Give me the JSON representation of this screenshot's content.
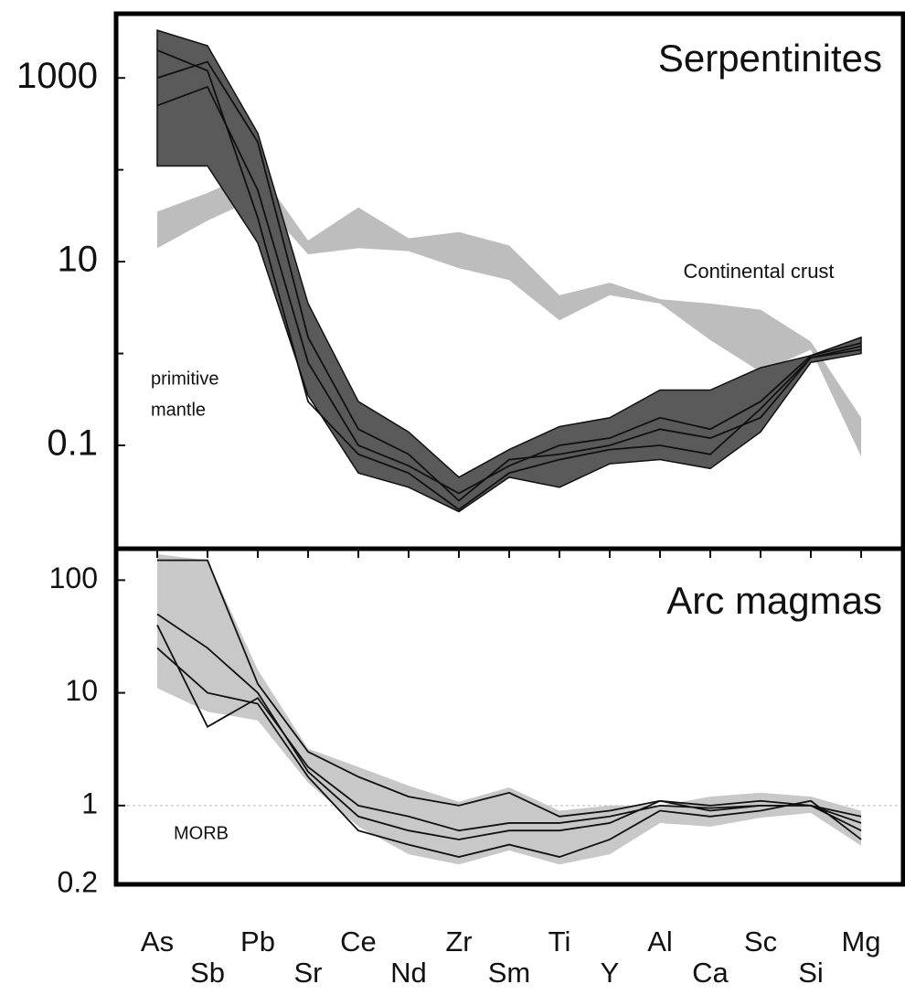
{
  "chart_data": [
    {
      "type": "line",
      "title": "Serpentinites",
      "log_y": true,
      "ylim": [
        0.0075,
        5000
      ],
      "yticks": [
        0.1,
        10,
        1000
      ],
      "minor_yticks": [
        1,
        100
      ],
      "annotations": [
        "Continental crust",
        "primitive",
        "mantle"
      ],
      "bands": [
        {
          "color": "#bdbdbd",
          "high": [
            35,
            56,
            100,
            17,
            39,
            18,
            21,
            15,
            4.3,
            5.9,
            3.9,
            3.5,
            3.0,
            1.35,
            0.2
          ],
          "low": [
            14,
            28,
            50,
            12,
            14,
            13,
            8.5,
            6.3,
            2.3,
            4.3,
            3.5,
            1.4,
            0.63,
            1.1,
            0.076
          ]
        },
        {
          "color": "#5a5a5a",
          "high": [
            3300,
            2240,
            250,
            3.5,
            0.3,
            0.14,
            0.045,
            0.09,
            0.16,
            0.2,
            0.4,
            0.4,
            0.7,
            0.95,
            1.5
          ],
          "low": [
            110,
            110,
            16,
            0.35,
            0.05,
            0.035,
            0.019,
            0.045,
            0.035,
            0.063,
            0.07,
            0.056,
            0.14,
            0.8,
            1.0
          ]
        }
      ],
      "series": [
        {
          "color": "#111111",
          "values": [
            1000,
            1500,
            200,
            1.5,
            0.15,
            0.08,
            0.025,
            0.07,
            0.08,
            0.1,
            0.15,
            0.12,
            0.2,
            0.9,
            1.2
          ]
        },
        {
          "color": "#111111",
          "values": [
            500,
            800,
            60,
            0.8,
            0.1,
            0.06,
            0.03,
            0.06,
            0.1,
            0.12,
            0.2,
            0.15,
            0.3,
            0.95,
            1.3
          ]
        },
        {
          "color": "#111111",
          "values": [
            2000,
            1200,
            30,
            0.3,
            0.08,
            0.05,
            0.02,
            0.05,
            0.07,
            0.09,
            0.1,
            0.08,
            0.25,
            0.9,
            1.1
          ]
        }
      ]
    },
    {
      "type": "line",
      "title": "Arc magmas",
      "log_y": true,
      "categories": [
        "As",
        "Sb",
        "Pb",
        "Sr",
        "Ce",
        "Nd",
        "Zr",
        "Sm",
        "Ti",
        "Y",
        "Al",
        "Ca",
        "Sc",
        "Si",
        "Mg"
      ],
      "ylim": [
        0.2,
        190
      ],
      "yticks": [
        0.2,
        1,
        10,
        100
      ],
      "reference_line": 1,
      "annotations": [
        "MORB"
      ],
      "bands": [
        {
          "color": "#c8c8c8",
          "high": [
            170,
            150,
            16,
            3.2,
            2.2,
            1.5,
            1.08,
            1.45,
            0.9,
            1,
            1,
            1.2,
            1.3,
            1.2,
            0.9
          ],
          "low": [
            11,
            6.8,
            5.7,
            1.6,
            0.65,
            0.37,
            0.3,
            0.4,
            0.3,
            0.37,
            0.7,
            0.65,
            0.78,
            0.86,
            0.44
          ]
        }
      ],
      "series": [
        {
          "color": "#111111",
          "values": [
            150,
            150,
            12,
            3,
            1.8,
            1.2,
            1.0,
            1.3,
            0.8,
            0.9,
            1.1,
            1.0,
            1.1,
            1.0,
            0.7
          ]
        },
        {
          "color": "#111111",
          "values": [
            50,
            25,
            10,
            2,
            0.8,
            0.6,
            0.5,
            0.6,
            0.6,
            0.7,
            1.1,
            0.9,
            1.0,
            1.0,
            0.6
          ]
        },
        {
          "color": "#111111",
          "values": [
            25,
            10,
            8,
            1.8,
            0.6,
            0.45,
            0.35,
            0.45,
            0.35,
            0.5,
            0.9,
            0.8,
            0.9,
            1.1,
            0.5
          ]
        },
        {
          "color": "#111111",
          "values": [
            40,
            5,
            9,
            2.2,
            1.0,
            0.8,
            0.6,
            0.7,
            0.7,
            0.8,
            1.0,
            0.95,
            1.0,
            1.0,
            0.8
          ]
        }
      ]
    }
  ]
}
